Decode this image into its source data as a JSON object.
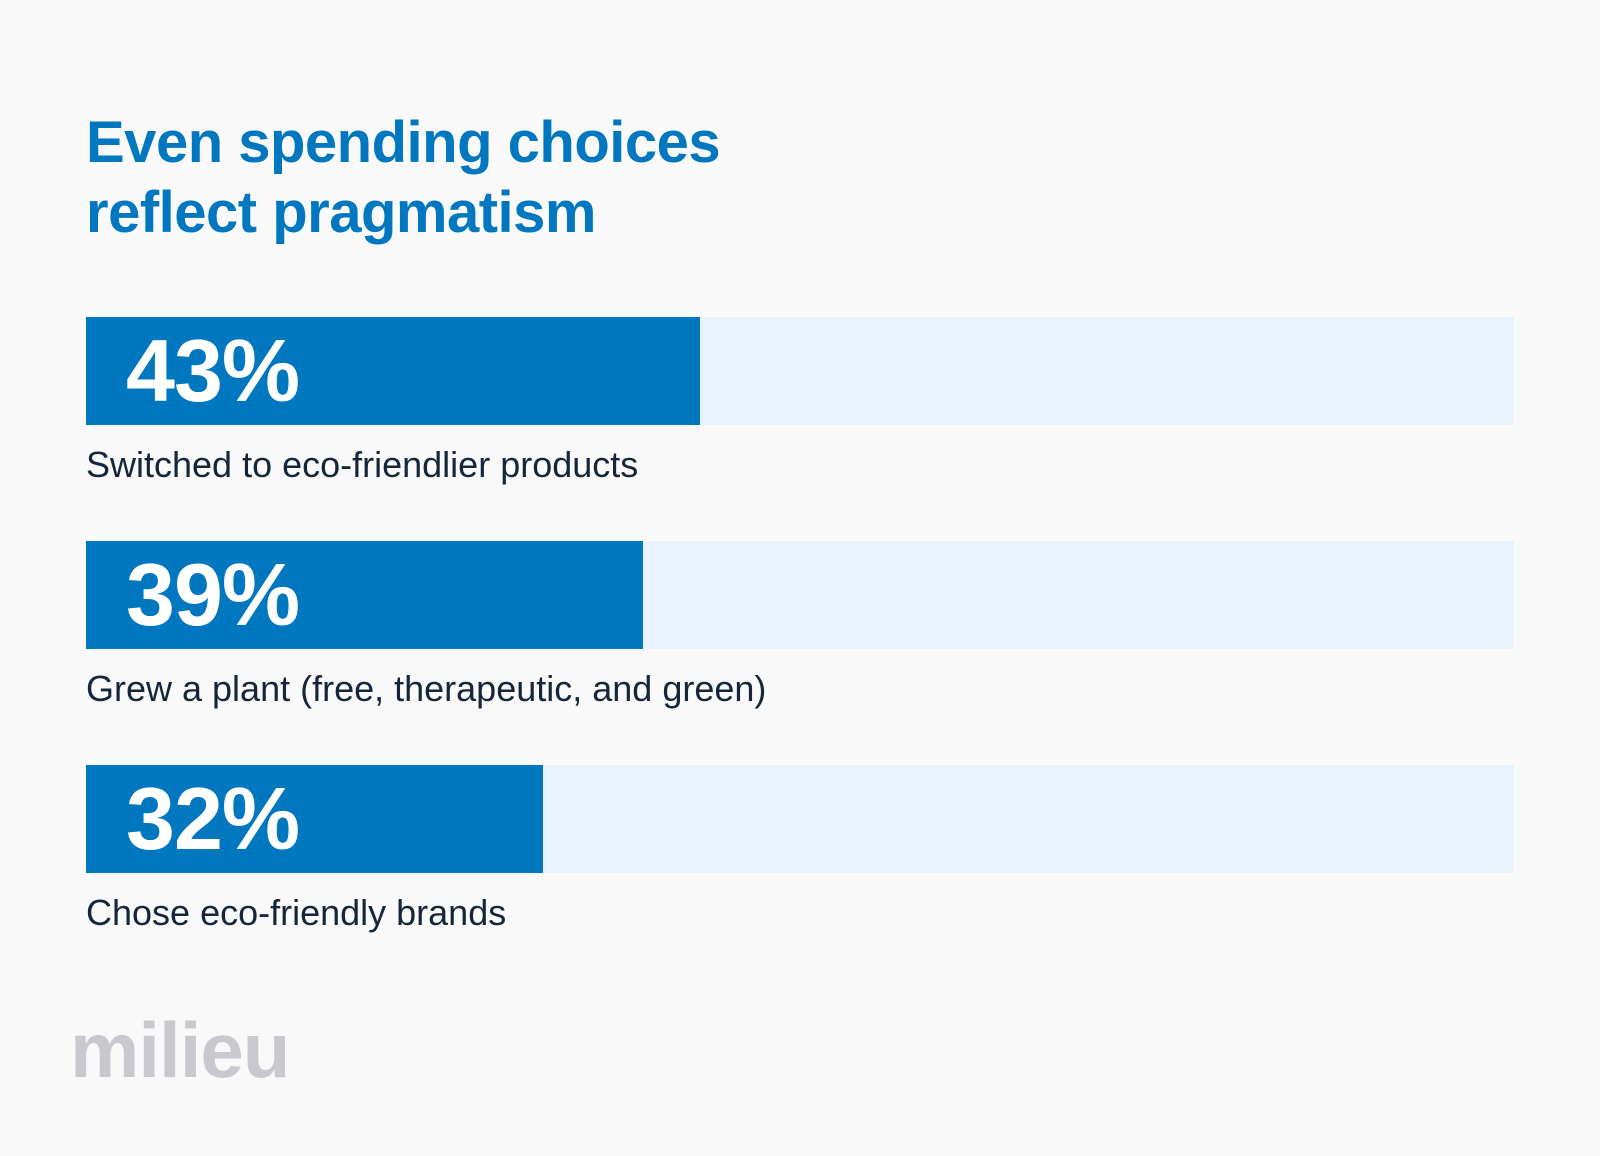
{
  "title_lines": [
    "Even spending choices",
    "reflect pragmatism"
  ],
  "logo_text": "milieu",
  "colors": {
    "accent": "#0077be",
    "track": "#e8f3fd",
    "background": "#f9f9f9",
    "label_text": "#15263a",
    "logo": "#c8c9ce"
  },
  "chart_data": {
    "type": "bar",
    "orientation": "horizontal",
    "title": "Even spending choices reflect pragmatism",
    "categories": [
      "Switched to eco-friendlier products",
      "Grew a plant (free, therapeutic, and green)",
      "Chose eco-friendly brands"
    ],
    "values": [
      43,
      39,
      32
    ],
    "value_labels": [
      "43%",
      "39%",
      "32%"
    ],
    "xlim": [
      0,
      100
    ],
    "xlabel": "",
    "ylabel": "",
    "grid": false
  }
}
